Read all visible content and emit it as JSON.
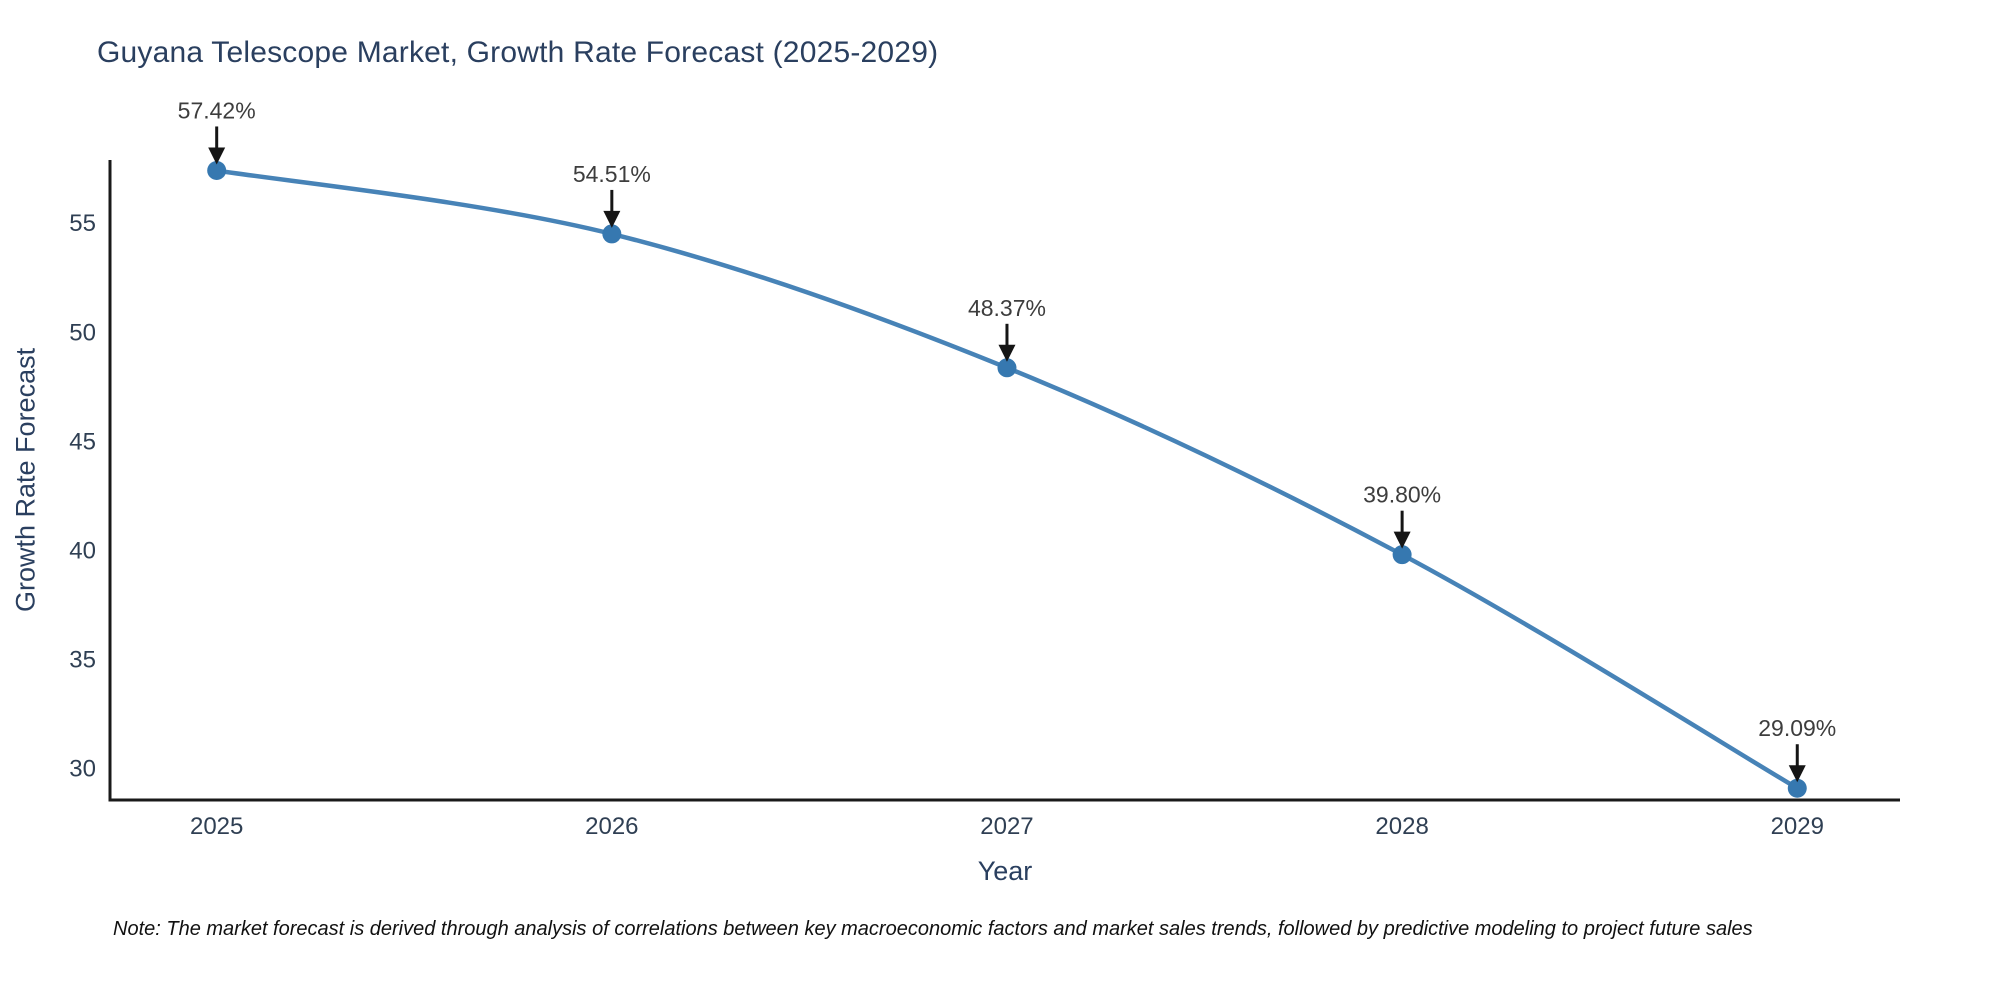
{
  "page": {
    "title": "Guyana Telescope Market, Growth Rate Forecast (2025-2029)",
    "note": "Note: The market forecast is derived through analysis of correlations between key macroeconomic factors and market sales trends, followed by predictive modeling to project future sales"
  },
  "chart_data": {
    "type": "line",
    "title": "Guyana Telescope Market, Growth Rate Forecast (2025-2029)",
    "xlabel": "Year",
    "ylabel": "Growth Rate Forecast",
    "x": [
      2025,
      2026,
      2027,
      2028,
      2029
    ],
    "values": [
      57.42,
      54.51,
      48.37,
      39.8,
      29.09
    ],
    "point_labels": [
      "57.42%",
      "54.51%",
      "48.37%",
      "39.80%",
      "29.09%"
    ],
    "xticks": [
      2025,
      2026,
      2027,
      2028,
      2029
    ],
    "yticks": [
      30,
      35,
      40,
      45,
      50,
      55
    ],
    "xlim": [
      2024.73,
      2029.26
    ],
    "ylim": [
      28.55,
      57.9
    ],
    "grid": false,
    "legend_position": "none",
    "line_shape": "spline",
    "colors": {
      "line": "#4783b7",
      "marker": "#3678b0",
      "axis": "#1a1a1a",
      "title": "#2a3f5f",
      "tick_label": "#2f3f53",
      "annotation_text": "#3d3d3d",
      "arrow": "#151515",
      "background": "#ffffff"
    }
  }
}
